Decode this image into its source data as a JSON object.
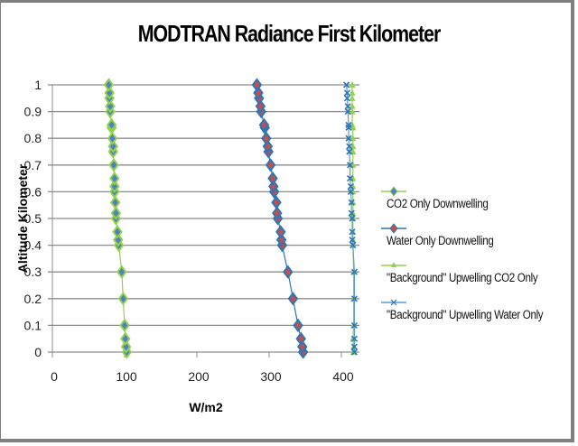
{
  "chart_data": {
    "type": "scatter",
    "title": "MODTRAN Radiance First Kilometer",
    "xlabel": "W/m2",
    "ylabel": "Altitude Kilometer",
    "xlim": [
      0,
      425
    ],
    "ylim": [
      0,
      1
    ],
    "x_ticks": [
      0,
      100,
      200,
      300,
      400
    ],
    "y_ticks": [
      0,
      0.1,
      0.2,
      0.3,
      0.4,
      0.5,
      0.6,
      0.7,
      0.8,
      0.9,
      1
    ],
    "y_tick_labels": [
      "0",
      "0.1",
      "0.2",
      "0.3",
      "0.4",
      "0.5",
      "0.6",
      "0.7",
      "0.8",
      "0.9",
      "1"
    ],
    "grid": "horizontal",
    "legend_position": "right",
    "series": [
      {
        "name": "CO2 Only Downwelling",
        "line_color": "#92d050",
        "marker": "diamond",
        "marker_fill": "#4f81bd",
        "marker_edge": "#92d050",
        "points": [
          [
            103,
            0
          ],
          [
            102,
            0.02
          ],
          [
            101,
            0.05
          ],
          [
            100,
            0.1
          ],
          [
            98,
            0.2
          ],
          [
            96,
            0.3
          ],
          [
            92,
            0.4
          ],
          [
            91,
            0.42
          ],
          [
            90,
            0.45
          ],
          [
            88,
            0.5
          ],
          [
            88,
            0.52
          ],
          [
            87,
            0.56
          ],
          [
            86,
            0.6
          ],
          [
            86,
            0.62
          ],
          [
            86,
            0.65
          ],
          [
            85,
            0.7
          ],
          [
            84,
            0.75
          ],
          [
            84,
            0.77
          ],
          [
            83,
            0.8
          ],
          [
            82,
            0.84
          ],
          [
            82,
            0.85
          ],
          [
            80,
            0.9
          ],
          [
            80,
            0.92
          ],
          [
            79,
            0.95
          ],
          [
            79,
            0.97
          ],
          [
            78,
            1.0
          ]
        ]
      },
      {
        "name": "Water Only Downwelling",
        "line_color": "#2e75b6",
        "marker": "diamond",
        "marker_fill": "#c0504d",
        "marker_edge": "#2e75b6",
        "points": [
          [
            347,
            0
          ],
          [
            346,
            0.02
          ],
          [
            344,
            0.05
          ],
          [
            340,
            0.1
          ],
          [
            333,
            0.2
          ],
          [
            326,
            0.3
          ],
          [
            318,
            0.4
          ],
          [
            317,
            0.42
          ],
          [
            316,
            0.45
          ],
          [
            312,
            0.5
          ],
          [
            311,
            0.52
          ],
          [
            310,
            0.56
          ],
          [
            307,
            0.6
          ],
          [
            306,
            0.62
          ],
          [
            305,
            0.65
          ],
          [
            302,
            0.7
          ],
          [
            299,
            0.75
          ],
          [
            298,
            0.77
          ],
          [
            296,
            0.8
          ],
          [
            294,
            0.84
          ],
          [
            293,
            0.85
          ],
          [
            289,
            0.9
          ],
          [
            288,
            0.92
          ],
          [
            286,
            0.95
          ],
          [
            285,
            0.97
          ],
          [
            283,
            1.0
          ]
        ]
      },
      {
        "name": "\"Background\" Upwelling CO2 Only",
        "line_color": "#92d050",
        "marker": "triangle",
        "marker_fill": "#92d050",
        "marker_edge": "#92d050",
        "points": [
          [
            417,
            0
          ],
          [
            417,
            0.02
          ],
          [
            416,
            0.05
          ],
          [
            417,
            0.1
          ],
          [
            417,
            0.2
          ],
          [
            417,
            0.3
          ],
          [
            416,
            0.4
          ],
          [
            416,
            0.42
          ],
          [
            416,
            0.45
          ],
          [
            416,
            0.5
          ],
          [
            416,
            0.52
          ],
          [
            416,
            0.56
          ],
          [
            416,
            0.6
          ],
          [
            416,
            0.62
          ],
          [
            416,
            0.65
          ],
          [
            416,
            0.7
          ],
          [
            416,
            0.75
          ],
          [
            416,
            0.77
          ],
          [
            416,
            0.8
          ],
          [
            416,
            0.84
          ],
          [
            415,
            0.85
          ],
          [
            415,
            0.9
          ],
          [
            415,
            0.92
          ],
          [
            415,
            0.95
          ],
          [
            415,
            0.97
          ],
          [
            415,
            1.0
          ]
        ]
      },
      {
        "name": "\"Background\" Upwelling Water Only",
        "line_color": "#5b9bd5",
        "marker": "x",
        "marker_fill": "#2e75b6",
        "marker_edge": "#2e75b6",
        "points": [
          [
            418,
            0
          ],
          [
            418,
            0.02
          ],
          [
            418,
            0.05
          ],
          [
            418,
            0.1
          ],
          [
            418,
            0.2
          ],
          [
            418,
            0.3
          ],
          [
            416,
            0.4
          ],
          [
            415,
            0.42
          ],
          [
            415,
            0.45
          ],
          [
            415,
            0.5
          ],
          [
            414,
            0.52
          ],
          [
            414,
            0.56
          ],
          [
            413,
            0.6
          ],
          [
            413,
            0.62
          ],
          [
            412,
            0.65
          ],
          [
            412,
            0.7
          ],
          [
            411,
            0.75
          ],
          [
            411,
            0.77
          ],
          [
            410,
            0.8
          ],
          [
            410,
            0.84
          ],
          [
            410,
            0.85
          ],
          [
            409,
            0.9
          ],
          [
            409,
            0.92
          ],
          [
            408,
            0.95
          ],
          [
            408,
            0.97
          ],
          [
            407,
            1.0
          ]
        ]
      }
    ]
  }
}
